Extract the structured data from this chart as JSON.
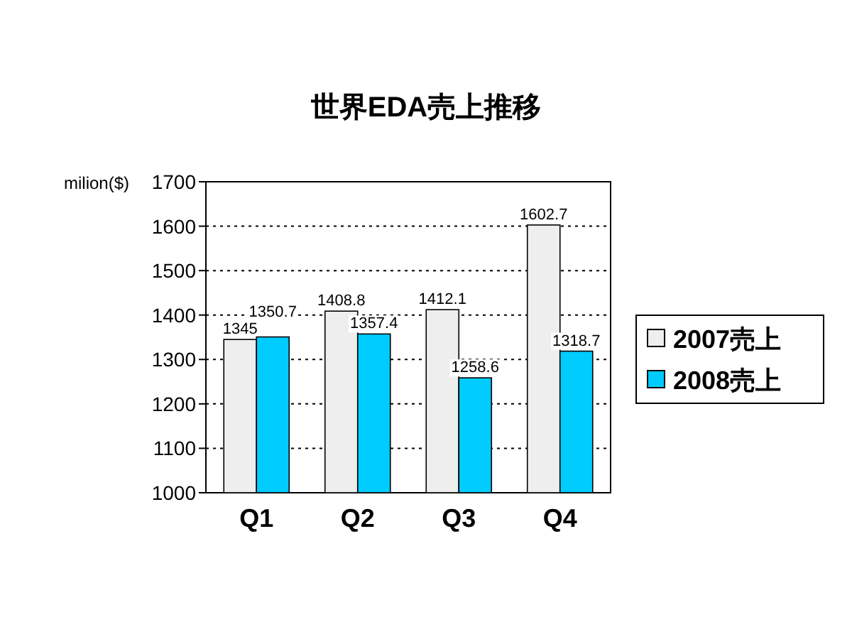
{
  "chart_data": {
    "type": "bar",
    "title": "世界EDA売上推移",
    "ylabel": "milion($)",
    "categories": [
      "Q1",
      "Q2",
      "Q3",
      "Q4"
    ],
    "series": [
      {
        "name": "2007売上",
        "color": "#eeeeee",
        "values": [
          1345,
          1408.8,
          1412.1,
          1602.7
        ],
        "value_labels": [
          "1345",
          "1408.8",
          "1412.1",
          "1602.7"
        ]
      },
      {
        "name": "2008売上",
        "color": "#00ccff",
        "values": [
          1350.7,
          1357.4,
          1258.6,
          1318.7
        ],
        "value_labels": [
          "1350.7",
          "1357.4",
          "1258.6",
          "1318.7"
        ]
      }
    ],
    "ylim": [
      1000,
      1700
    ],
    "yticks": [
      1000,
      1100,
      1200,
      1300,
      1400,
      1500,
      1600,
      1700
    ],
    "grid": "y",
    "legend": "right"
  }
}
